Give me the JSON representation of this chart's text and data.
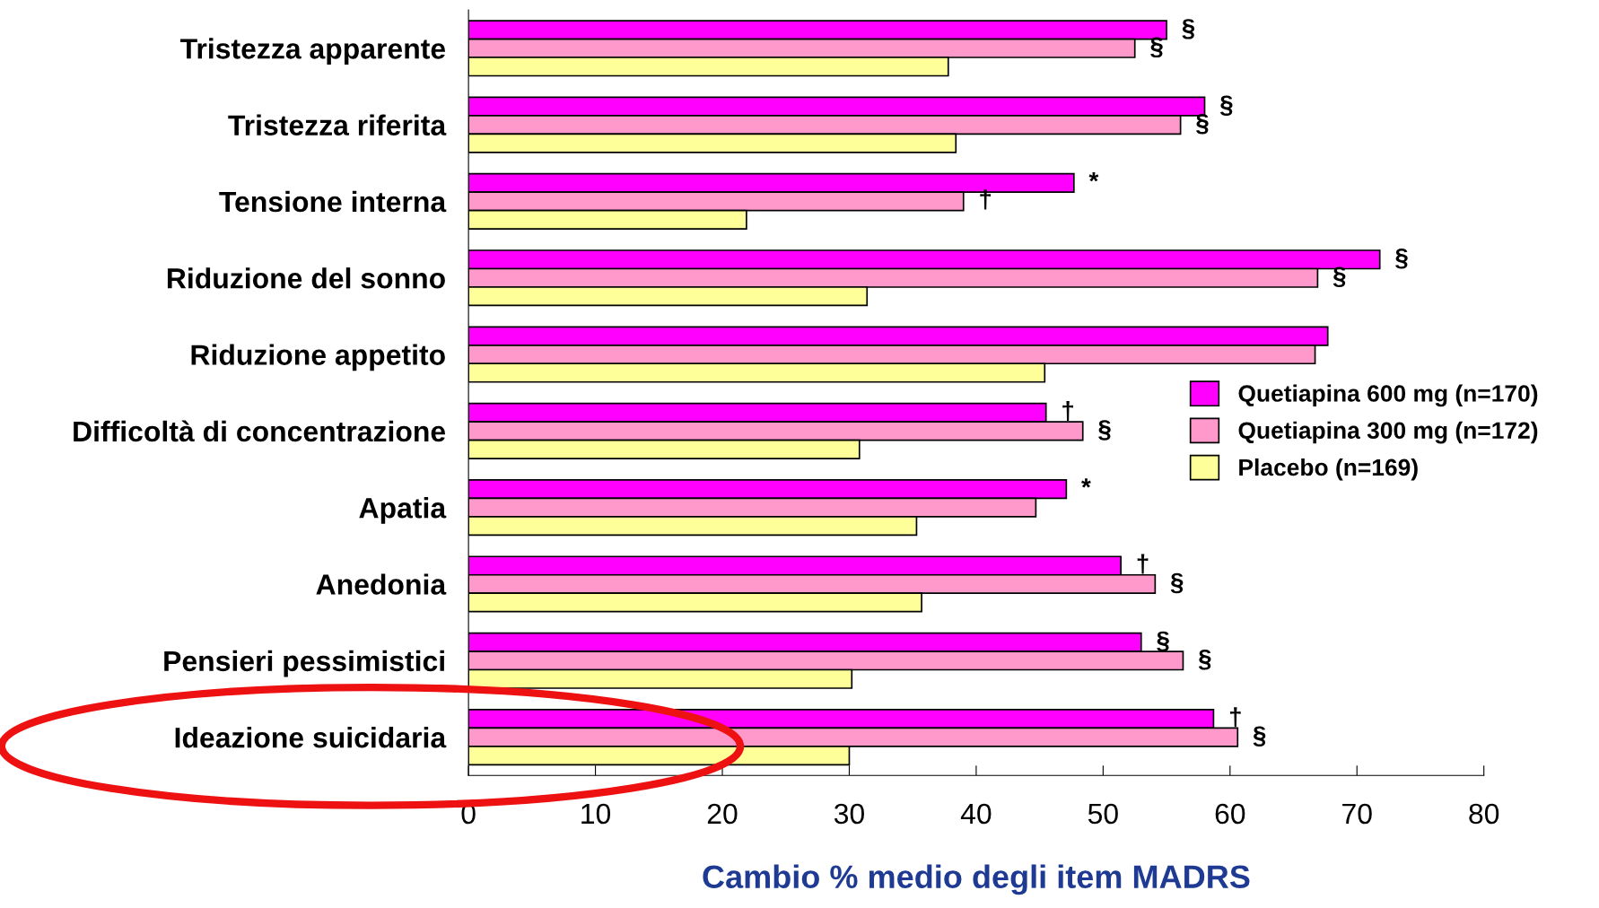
{
  "chart_data": {
    "type": "bar",
    "orientation": "horizontal",
    "xlabel": "Cambio % medio degli item MADRS",
    "categories": [
      "Tristezza apparente",
      "Tristezza riferita",
      "Tensione interna",
      "Riduzione del sonno",
      "Riduzione appetito",
      "Difficoltà di concentrazione",
      "Apatia",
      "Anedonia",
      "Pensieri pessimistici",
      "Ideazione suicidaria"
    ],
    "series": [
      {
        "name": "Quetiapina 600 mg (n=170)",
        "color": "#ff00ff",
        "values": [
          55.0,
          58.0,
          47.7,
          71.8,
          67.7,
          45.5,
          47.1,
          51.4,
          53.0,
          58.7
        ],
        "value_labels": [
          "§",
          "§",
          "*",
          "§",
          null,
          "†",
          "*",
          "†",
          "§",
          "†"
        ]
      },
      {
        "name": "Quetiapina 300 mg (n=172)",
        "color": "#ff99cc",
        "values": [
          52.5,
          56.1,
          39.0,
          66.9,
          66.7,
          48.4,
          44.7,
          54.1,
          56.3,
          60.6
        ],
        "value_labels": [
          "§",
          "§",
          "†",
          "§",
          null,
          "§",
          null,
          "§",
          "§",
          "§"
        ]
      },
      {
        "name": "Placebo (n=169)",
        "color": "#ffff99",
        "values": [
          37.8,
          38.4,
          21.9,
          31.4,
          45.4,
          30.8,
          35.3,
          35.7,
          30.2,
          30.0
        ]
      }
    ],
    "xlim": [
      0,
      80
    ],
    "xticks": [
      0,
      10,
      20,
      30,
      40,
      50,
      60,
      70,
      80
    ],
    "legend": "right",
    "grid": false
  }
}
